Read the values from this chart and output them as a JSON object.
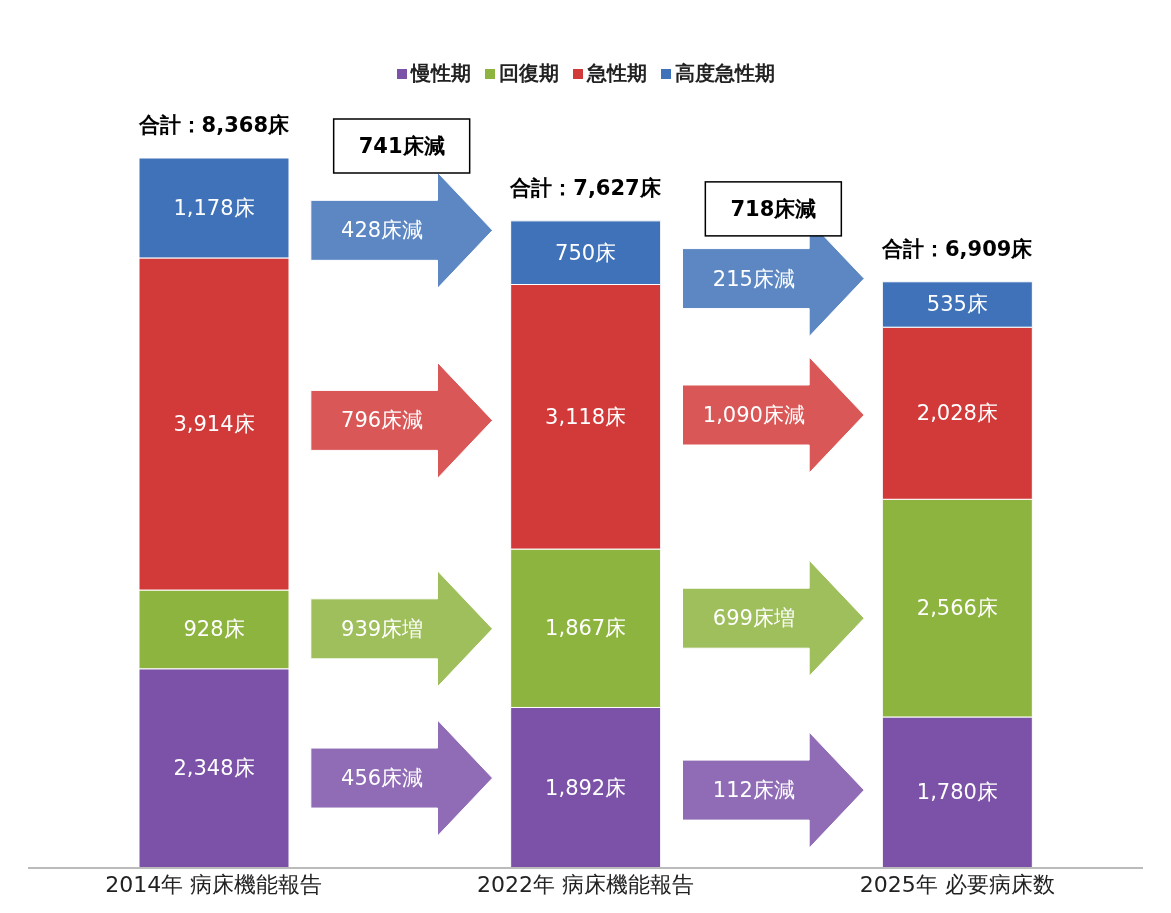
{
  "chart_data": {
    "type": "bar",
    "stacked": true,
    "legend": "top",
    "categories": [
      "2014年 病床機能報告",
      "2022年 病床機能報告",
      "2025年 必要病床数"
    ],
    "series": [
      {
        "name": "慢性期",
        "color": "#7b52a8",
        "values": [
          2348,
          1892,
          1780
        ],
        "value_labels": [
          "2,348床",
          "1,892床",
          "1,780床"
        ]
      },
      {
        "name": "回復期",
        "color": "#8db43e",
        "values": [
          928,
          1867,
          2566
        ],
        "value_labels": [
          "928床",
          "1,867床",
          "2,566床"
        ]
      },
      {
        "name": "急性期",
        "color": "#d23a3a",
        "values": [
          3914,
          3118,
          2028
        ],
        "value_labels": [
          "3,914床",
          "3,118床",
          "2,028床"
        ]
      },
      {
        "name": "高度急性期",
        "color": "#3f72b8",
        "values": [
          1178,
          750,
          535
        ],
        "value_labels": [
          "1,178床",
          "750床",
          "535床"
        ]
      }
    ],
    "totals": [
      "合計：8,368床",
      "合計：7,627床",
      "合計：6,909床"
    ],
    "annotations": [
      "741床減",
      "718床減",
      "456床減",
      "939床増",
      "796床減",
      "428床減",
      "112床減",
      "699床増",
      "1,090床減",
      "215床減"
    ]
  }
}
